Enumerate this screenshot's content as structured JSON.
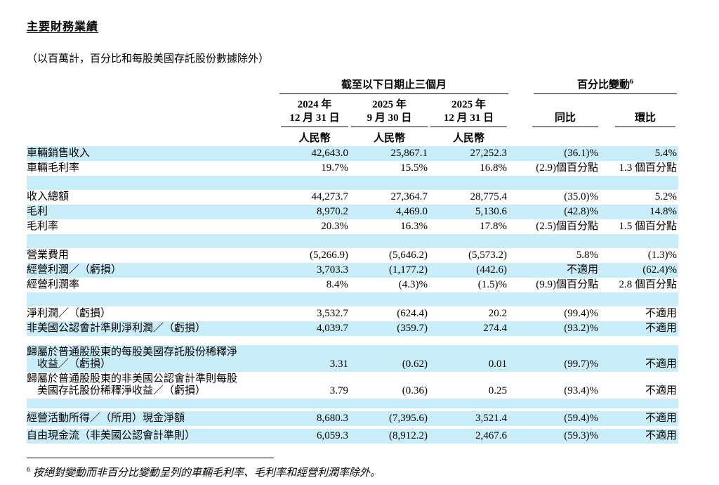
{
  "page": {
    "title": "主要財務業績",
    "subtitle": "（以百萬計，百分比和每股美國存託股份數據除外）"
  },
  "table": {
    "group_period": "截至以下日期止三個月",
    "group_change": "百分比變動",
    "group_change_sup": "6",
    "columns": [
      {
        "line1": "2024 年",
        "line2": "12 月 31 日"
      },
      {
        "line1": "2025 年",
        "line2": "9 月 30 日"
      },
      {
        "line1": "2025 年",
        "line2": "12 月 31 日"
      }
    ],
    "yoy": "同比",
    "qoq": "環比",
    "currency": "人民幣",
    "rows": [
      {
        "label": "車輛銷售收入",
        "values": [
          "42,643.0",
          "25,867.1",
          "27,252.3",
          "(36.1)%",
          "5.4%"
        ]
      },
      {
        "label": "車輛毛利率",
        "values": [
          "19.7%",
          "15.5%",
          "16.8%",
          "(2.9)個百分點",
          "1.3 個百分點"
        ]
      },
      {
        "label": "收入總額",
        "values": [
          "44,273.7",
          "27,364.7",
          "28,775.4",
          "(35.0)%",
          "5.2%"
        ]
      },
      {
        "label": "毛利",
        "values": [
          "8,970.2",
          "4,469.0",
          "5,130.6",
          "(42.8)%",
          "14.8%"
        ]
      },
      {
        "label": "毛利率",
        "values": [
          "20.3%",
          "16.3%",
          "17.8%",
          "(2.5)個百分點",
          "1.5 個百分點"
        ]
      },
      {
        "label": "營業費用",
        "values": [
          "(5,266.9)",
          "(5,646.2)",
          "(5,573.2)",
          "5.8%",
          "(1.3)%"
        ]
      },
      {
        "label": "經營利潤／（虧損）",
        "values": [
          "3,703.3",
          "(1,177.2)",
          "(442.6)",
          "不適用",
          "(62.4)%"
        ]
      },
      {
        "label": "經營利潤率",
        "values": [
          "8.4%",
          "(4.3)%",
          "(1.5)%",
          "(9.9)個百分點",
          "2.8 個百分點"
        ]
      },
      {
        "label": "淨利潤／（虧損）",
        "values": [
          "3,532.7",
          "(624.4)",
          "20.2",
          "(99.4)%",
          "不適用"
        ]
      },
      {
        "label": "非美國公認會計準則淨利潤／（虧損）",
        "values": [
          "4,039.7",
          "(359.7)",
          "274.4",
          "(93.2)%",
          "不適用"
        ]
      },
      {
        "label": "歸屬於普通股股東的每股美國存託股份稀釋淨\n　收益／（虧損）",
        "values": [
          "3.31",
          "(0.62)",
          "0.01",
          "(99.7)%",
          "不適用"
        ]
      },
      {
        "label": "歸屬於普通股股東的非美國公認會計準則每股\n　美國存託股份稀釋淨收益／（虧損）",
        "values": [
          "3.79",
          "(0.36)",
          "0.25",
          "(93.4)%",
          "不適用"
        ]
      },
      {
        "label": "經營活動所得／（所用）現金淨額",
        "values": [
          "8,680.3",
          "(7,395.6)",
          "3,521.4",
          "(59.4)%",
          "不適用"
        ]
      },
      {
        "label": "自由現金流（非美國公認會計準則）",
        "values": [
          "6,059.3",
          "(8,912.2)",
          "2,467.6",
          "(59.3)%",
          "不適用"
        ]
      }
    ]
  },
  "footnote": {
    "sup": "6",
    "text": "按絕對變動而非百分比變動呈列的車輛毛利率、毛利率和經營利潤率除外。"
  }
}
